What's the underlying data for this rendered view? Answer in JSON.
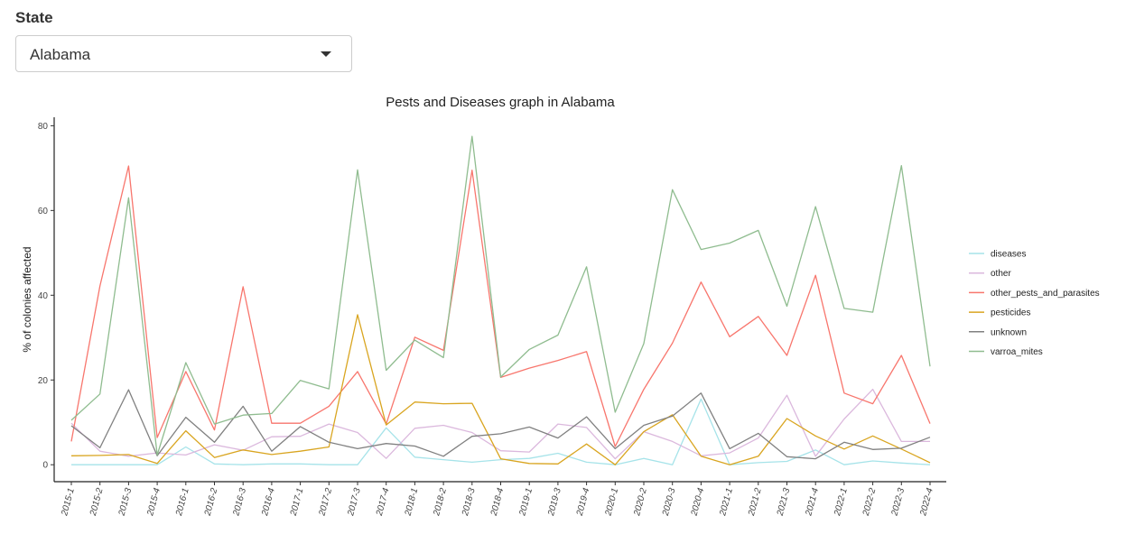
{
  "filter": {
    "label": "State",
    "selected": "Alabama"
  },
  "chart_data": {
    "type": "line",
    "title": "Pests and Diseases graph in Alabama",
    "xlabel": "",
    "ylabel": "% of colonies affected",
    "ylim": [
      -4,
      82
    ],
    "yticks": [
      0,
      20,
      40,
      60,
      80
    ],
    "grid": false,
    "legend_position": "right",
    "categories": [
      "2015-1",
      "2015-2",
      "2015-3",
      "2015-4",
      "2016-1",
      "2016-2",
      "2016-3",
      "2016-4",
      "2017-1",
      "2017-2",
      "2017-3",
      "2017-4",
      "2018-1",
      "2018-2",
      "2018-3",
      "2018-4",
      "2019-1",
      "2019-3",
      "2019-4",
      "2020-1",
      "2020-2",
      "2020-3",
      "2020-4",
      "2021-1",
      "2021-2",
      "2021-3",
      "2021-4",
      "2022-1",
      "2022-2",
      "2022-3",
      "2022-4"
    ],
    "series": [
      {
        "name": "diseases",
        "color": "#a6e3e9",
        "values": [
          0,
          0,
          0,
          0,
          4.2,
          0.2,
          0,
          0.2,
          0.2,
          0,
          0,
          8.7,
          1.8,
          1.2,
          0.6,
          1.2,
          1.5,
          2.7,
          0.6,
          0,
          1.5,
          0,
          15.5,
          0,
          0.5,
          0.8,
          3.5,
          0,
          0.9,
          0.4,
          0
        ]
      },
      {
        "name": "other",
        "color": "#dbb8dd",
        "values": [
          9.8,
          3.2,
          2.0,
          2.8,
          2.3,
          4.7,
          3.4,
          6.6,
          6.7,
          9.6,
          7.6,
          1.5,
          8.6,
          9.3,
          7.6,
          3.3,
          3.0,
          9.6,
          8.8,
          1.4,
          7.8,
          5.5,
          2.1,
          2.8,
          6.3,
          16.4,
          2.0,
          10.8,
          17.8,
          5.5,
          5.5
        ]
      },
      {
        "name": "other_pests_and_parasites",
        "color": "#f8766d",
        "values": [
          5.5,
          42.2,
          70.5,
          6.4,
          22.0,
          8.2,
          42.0,
          9.8,
          9.8,
          13.8,
          22.0,
          9.6,
          30.1,
          27.0,
          69.5,
          20.6,
          22.8,
          24.6,
          26.7,
          4.3,
          17.8,
          28.7,
          43.1,
          30.2,
          35.0,
          25.8,
          44.7,
          16.9,
          14.4,
          25.8,
          9.7
        ]
      },
      {
        "name": "pesticides",
        "color": "#d9a520",
        "values": [
          2.1,
          2.2,
          2.4,
          0.3,
          8.0,
          1.7,
          3.5,
          2.4,
          3.2,
          4.2,
          35.4,
          9.4,
          14.8,
          14.4,
          14.5,
          1.4,
          0.3,
          0.2,
          4.9,
          0,
          7.8,
          11.8,
          2.0,
          0,
          2.0,
          10.9,
          6.8,
          3.7,
          6.8,
          3.7,
          0.5
        ]
      },
      {
        "name": "unknown",
        "color": "#808080",
        "values": [
          9.2,
          4.0,
          17.7,
          2.1,
          11.2,
          5.3,
          13.8,
          3.2,
          9.0,
          5.3,
          3.8,
          5.0,
          4.4,
          2.0,
          6.7,
          7.3,
          8.9,
          6.3,
          11.3,
          3.8,
          9.3,
          11.5,
          16.9,
          3.8,
          7.4,
          1.9,
          1.4,
          5.3,
          3.6,
          3.9,
          6.5
        ]
      },
      {
        "name": "varroa_mites",
        "color": "#8fbc8f",
        "values": [
          10.5,
          16.7,
          63.0,
          2.3,
          24.1,
          9.6,
          11.7,
          12.1,
          19.9,
          17.9,
          69.6,
          22.3,
          29.4,
          25.3,
          77.5,
          20.7,
          27.2,
          30.6,
          46.7,
          12.4,
          28.6,
          64.9,
          50.8,
          52.3,
          55.3,
          37.4,
          60.9,
          36.9,
          36.0,
          70.6,
          23.2
        ]
      }
    ]
  }
}
